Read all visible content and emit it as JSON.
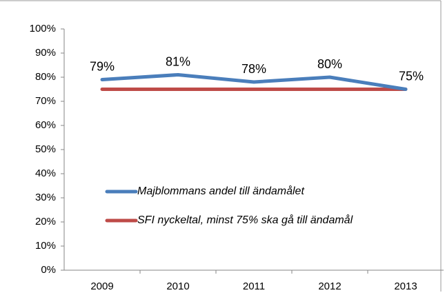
{
  "chart_data": {
    "type": "line",
    "categories": [
      "2009",
      "2010",
      "2011",
      "2012",
      "2013"
    ],
    "series": [
      {
        "name": "Majblommans andel till ändamålet",
        "color": "#4a7ebb",
        "values": [
          79,
          81,
          78,
          80,
          75
        ],
        "value_labels": [
          "79%",
          "81%",
          "78%",
          "80%",
          "75%"
        ]
      },
      {
        "name": "SFI nyckeltal, minst 75% ska gå till ändamål",
        "color": "#be4b48",
        "values": [
          75,
          75,
          75,
          75,
          75
        ]
      }
    ],
    "ylim": [
      0,
      100
    ],
    "yticks": [
      {
        "value": 0,
        "label": "0%"
      },
      {
        "value": 10,
        "label": "10%"
      },
      {
        "value": 20,
        "label": "20%"
      },
      {
        "value": 30,
        "label": "30%"
      },
      {
        "value": 40,
        "label": "40%"
      },
      {
        "value": 50,
        "label": "50%"
      },
      {
        "value": 60,
        "label": "60%"
      },
      {
        "value": 70,
        "label": "70%"
      },
      {
        "value": 80,
        "label": "80%"
      },
      {
        "value": 90,
        "label": "90%"
      },
      {
        "value": 100,
        "label": "100%"
      }
    ],
    "legend": "bottom-left"
  }
}
